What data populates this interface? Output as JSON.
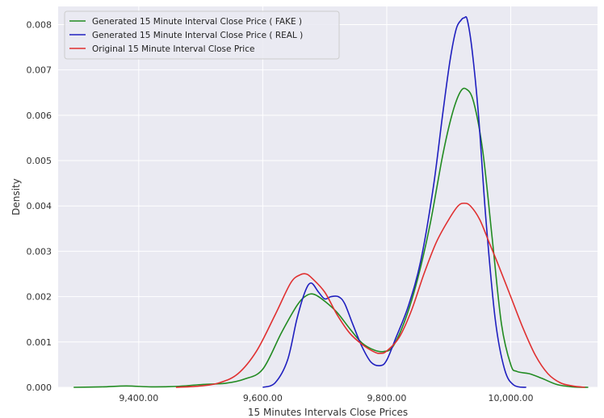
{
  "chart_data": {
    "type": "line",
    "title": "",
    "xlabel": "15 Minutes Intervals Close Prices",
    "ylabel": "Density",
    "xlim": [
      9270,
      10140
    ],
    "ylim": [
      0,
      0.0084
    ],
    "x_ticks": [
      9400,
      9600,
      9800,
      10000
    ],
    "x_tick_labels": [
      "9,400.00",
      "9,600.00",
      "9,800.00",
      "10,000.00"
    ],
    "y_ticks": [
      0,
      0.001,
      0.002,
      0.003,
      0.004,
      0.005,
      0.006,
      0.007,
      0.008
    ],
    "y_tick_labels": [
      "0.000",
      "0.001",
      "0.002",
      "0.003",
      "0.004",
      "0.005",
      "0.006",
      "0.007",
      "0.008"
    ],
    "grid": true,
    "legend_position": "top-left",
    "background": "#eaeaf2",
    "series": [
      {
        "name": "Generated 15 Minute Interval Close Price ( FAKE )",
        "color": "#228b22",
        "x": [
          9295,
          9340,
          9380,
          9420,
          9460,
          9500,
          9540,
          9570,
          9600,
          9630,
          9655,
          9670,
          9683,
          9700,
          9720,
          9740,
          9760,
          9780,
          9795,
          9810,
          9830,
          9850,
          9870,
          9890,
          9905,
          9918,
          9928,
          9940,
          9955,
          9970,
          9985,
          10000,
          10010,
          10030,
          10050,
          10075,
          10100,
          10125
        ],
        "y": [
          0.0,
          1e-05,
          3e-05,
          1e-05,
          2e-05,
          6e-05,
          9e-05,
          0.00018,
          0.0004,
          0.0012,
          0.0018,
          0.00202,
          0.00205,
          0.0019,
          0.00165,
          0.0013,
          0.00098,
          0.00082,
          0.00079,
          0.0009,
          0.0015,
          0.0024,
          0.0036,
          0.0051,
          0.006,
          0.0065,
          0.00658,
          0.0063,
          0.0052,
          0.0033,
          0.0014,
          0.0005,
          0.00035,
          0.0003,
          0.0002,
          6e-05,
          1e-05,
          0.0
        ]
      },
      {
        "name": "Generated 15 Minute Interval Close Price ( REAL )",
        "color": "#1f1fbf",
        "x": [
          9600,
          9620,
          9640,
          9655,
          9668,
          9678,
          9690,
          9700,
          9710,
          9722,
          9732,
          9745,
          9760,
          9775,
          9790,
          9800,
          9815,
          9835,
          9855,
          9875,
          9890,
          9902,
          9912,
          9920,
          9925,
          9930,
          9938,
          9948,
          9960,
          9975,
          9990,
          10005,
          10025
        ],
        "y": [
          0.0,
          0.0001,
          0.0006,
          0.0015,
          0.0021,
          0.0023,
          0.0021,
          0.00195,
          0.002,
          0.002,
          0.00185,
          0.0014,
          0.0009,
          0.00055,
          0.00048,
          0.0006,
          0.0011,
          0.0018,
          0.0028,
          0.0044,
          0.006,
          0.0072,
          0.0079,
          0.0081,
          0.00815,
          0.0081,
          0.0074,
          0.006,
          0.0037,
          0.0015,
          0.0004,
          5e-05,
          0.0
        ]
      },
      {
        "name": "Original 15 Minute Interval Close Price",
        "color": "#e03030",
        "x": [
          9460,
          9500,
          9530,
          9560,
          9590,
          9620,
          9645,
          9660,
          9670,
          9680,
          9700,
          9720,
          9740,
          9760,
          9780,
          9790,
          9800,
          9820,
          9840,
          9860,
          9880,
          9900,
          9915,
          9925,
          9935,
          9950,
          9965,
          9980,
          10000,
          10020,
          10040,
          10060,
          10080,
          10100,
          10120
        ],
        "y": [
          0.0,
          3e-05,
          0.0001,
          0.0003,
          0.0008,
          0.0016,
          0.0023,
          0.00248,
          0.0025,
          0.0024,
          0.0021,
          0.0016,
          0.0012,
          0.00095,
          0.00078,
          0.00075,
          0.0008,
          0.0011,
          0.0017,
          0.0025,
          0.0032,
          0.0037,
          0.004,
          0.00406,
          0.004,
          0.0037,
          0.0032,
          0.0027,
          0.002,
          0.0013,
          0.0007,
          0.0003,
          0.0001,
          3e-05,
          0.0
        ]
      }
    ]
  }
}
